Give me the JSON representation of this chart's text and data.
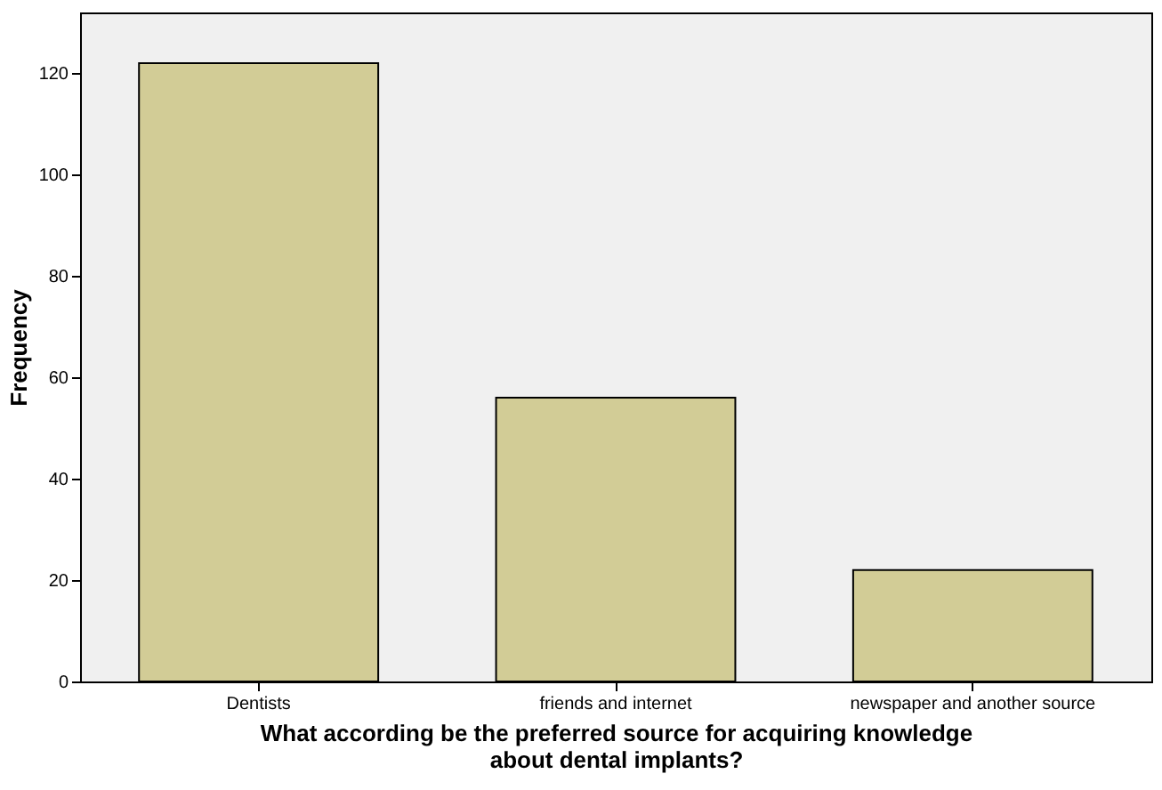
{
  "chart_data": {
    "type": "bar",
    "xlabel": "What according be the preferred source for acquiring knowledge about dental implants?",
    "ylabel": "Frequency",
    "categories": [
      "Dentists",
      "friends and internet",
      "newspaper and another source"
    ],
    "values": [
      122,
      56,
      22
    ],
    "color": "#d2cc96",
    "ylim": [
      0,
      132
    ],
    "yticks": [
      0,
      20,
      40,
      60,
      80,
      100,
      120
    ],
    "grid": false
  }
}
